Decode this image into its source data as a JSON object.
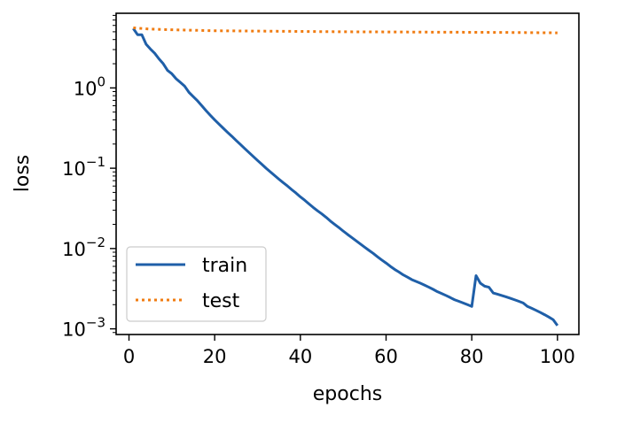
{
  "chart_data": {
    "type": "line",
    "xlabel": "epochs",
    "ylabel": "loss",
    "xlim": [
      -3,
      105
    ],
    "ylim": [
      0.00085,
      8.5
    ],
    "yscale": "log",
    "xticks": [
      0,
      20,
      40,
      60,
      80,
      100
    ],
    "yticks": [
      {
        "value": 1,
        "base": "10",
        "exp": "0"
      },
      {
        "value": 0.1,
        "base": "10",
        "exp": "−1"
      },
      {
        "value": 0.01,
        "base": "10",
        "exp": "−2"
      },
      {
        "value": 0.001,
        "base": "10",
        "exp": "−3"
      }
    ],
    "grid": false,
    "legend_position": "lower-left",
    "series": [
      {
        "name": "train",
        "color": "#1f5fa8",
        "style": "solid",
        "x": [
          1,
          2,
          3,
          4,
          5,
          6,
          7,
          8,
          9,
          10,
          11,
          12,
          13,
          14,
          15,
          16,
          17,
          18,
          19,
          20,
          21,
          22,
          23,
          24,
          25,
          26,
          27,
          28,
          29,
          30,
          31,
          32,
          33,
          34,
          35,
          36,
          37,
          38,
          39,
          40,
          41,
          42,
          43,
          44,
          45,
          46,
          47,
          48,
          49,
          50,
          51,
          52,
          53,
          54,
          55,
          56,
          57,
          58,
          59,
          60,
          61,
          62,
          63,
          64,
          65,
          66,
          67,
          68,
          69,
          70,
          71,
          72,
          73,
          74,
          75,
          76,
          77,
          78,
          79,
          80,
          81,
          82,
          83,
          84,
          85,
          86,
          87,
          88,
          89,
          90,
          91,
          92,
          93,
          94,
          95,
          96,
          97,
          98,
          99,
          100
        ],
        "values": [
          5.5,
          4.6,
          4.6,
          3.5,
          3.05,
          2.7,
          2.3,
          2.0,
          1.65,
          1.5,
          1.3,
          1.17,
          1.05,
          0.88,
          0.78,
          0.69,
          0.6,
          0.52,
          0.455,
          0.4,
          0.355,
          0.315,
          0.28,
          0.25,
          0.222,
          0.198,
          0.176,
          0.157,
          0.14,
          0.125,
          0.112,
          0.1,
          0.09,
          0.081,
          0.073,
          0.066,
          0.06,
          0.054,
          0.049,
          0.044,
          0.04,
          0.036,
          0.0325,
          0.0295,
          0.027,
          0.0245,
          0.022,
          0.02,
          0.0182,
          0.0165,
          0.015,
          0.0137,
          0.0125,
          0.0114,
          0.0104,
          0.0095,
          0.0087,
          0.0079,
          0.0072,
          0.0066,
          0.006,
          0.0055,
          0.0051,
          0.0047,
          0.0044,
          0.0041,
          0.0039,
          0.0037,
          0.0035,
          0.0033,
          0.0031,
          0.0029,
          0.00275,
          0.0026,
          0.00245,
          0.0023,
          0.0022,
          0.0021,
          0.002,
          0.0019,
          0.0046,
          0.0037,
          0.0034,
          0.0033,
          0.0028,
          0.0027,
          0.0026,
          0.0025,
          0.0024,
          0.0023,
          0.0022,
          0.0021,
          0.0019,
          0.0018,
          0.0017,
          0.0016,
          0.0015,
          0.0014,
          0.0013,
          0.0011
        ]
      },
      {
        "name": "test",
        "color": "#f07c12",
        "style": "dotted",
        "x": [
          1,
          5,
          10,
          20,
          30,
          40,
          50,
          60,
          70,
          80,
          90,
          100
        ],
        "values": [
          5.6,
          5.4,
          5.3,
          5.15,
          5.1,
          5.05,
          5.0,
          4.98,
          4.95,
          4.93,
          4.9,
          4.85
        ]
      }
    ]
  }
}
